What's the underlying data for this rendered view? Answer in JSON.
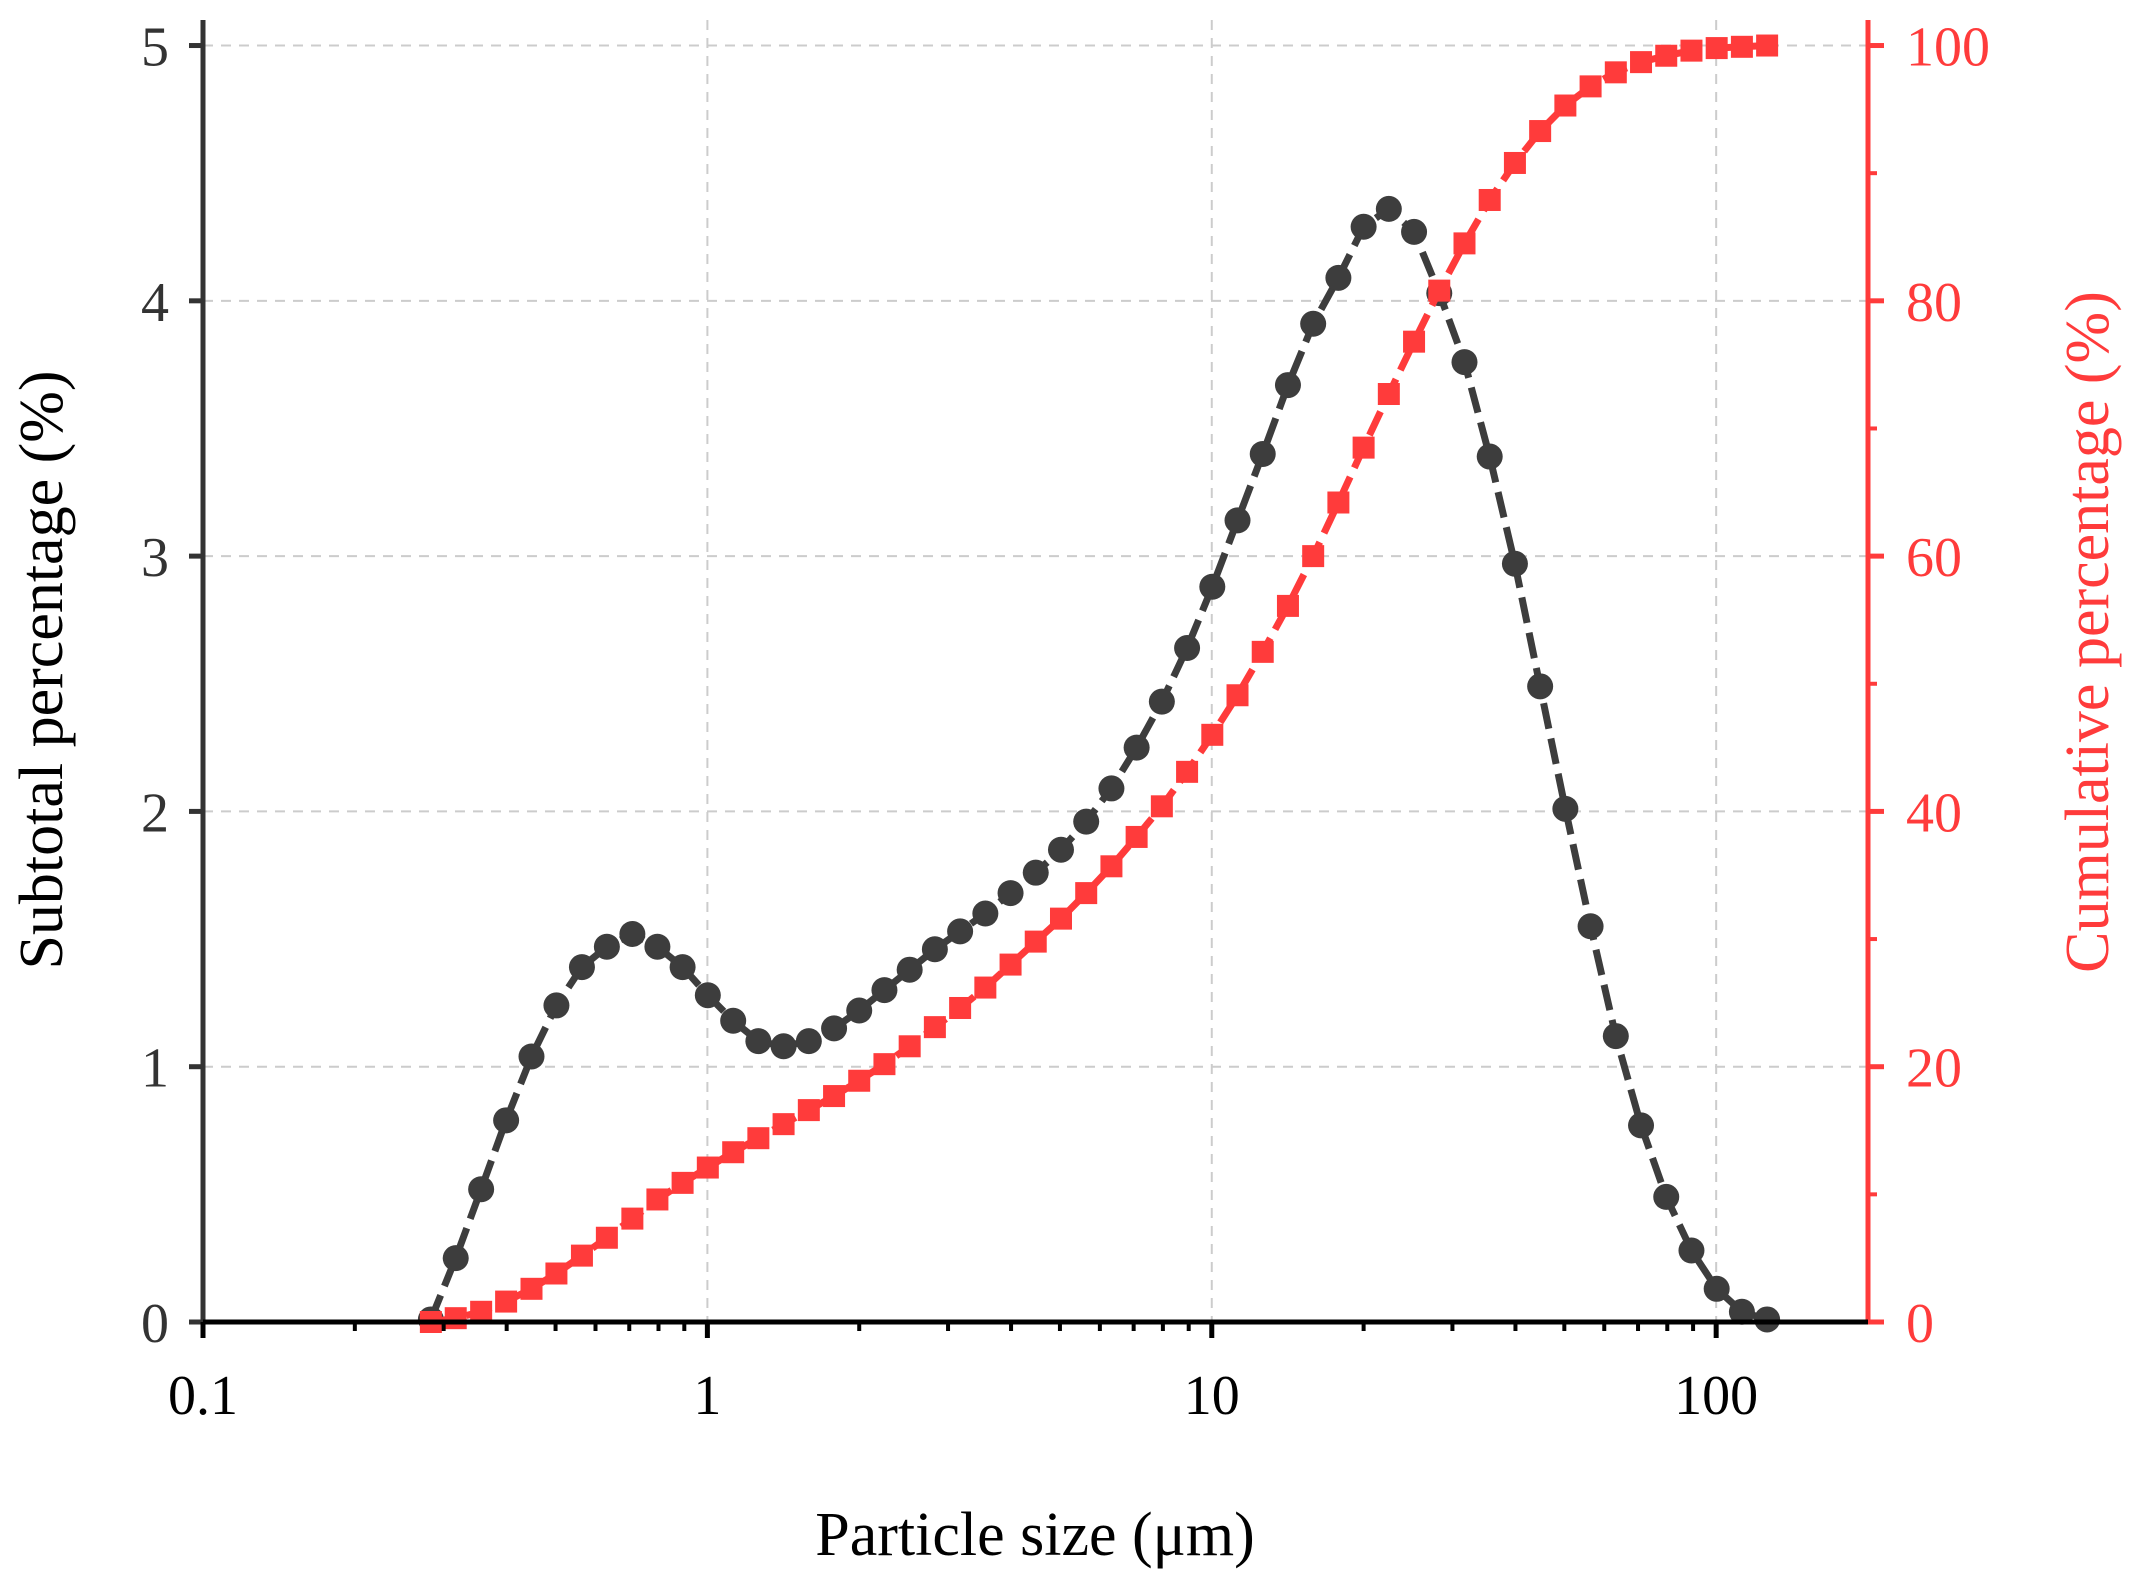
{
  "chart_data": {
    "type": "line",
    "title": "",
    "xlabel": "Particle size (μm)",
    "ylabel": "Subtotal percentage (%)",
    "y2label": "Cumulative percentage (%)",
    "xscale": "log",
    "xlim": [
      0.1,
      200
    ],
    "ylim": [
      0,
      5.1
    ],
    "y2lim": [
      0,
      102
    ],
    "xticks": [
      0.1,
      1,
      10,
      100
    ],
    "xtick_labels": [
      "0.1",
      "1",
      "10",
      "100"
    ],
    "yticks": [
      0,
      1,
      2,
      3,
      4,
      5
    ],
    "ytick_labels": [
      "0",
      "1",
      "2",
      "3",
      "4",
      "5"
    ],
    "y2ticks": [
      0,
      20,
      40,
      60,
      80,
      100
    ],
    "y2tick_labels": [
      "0",
      "20",
      "40",
      "60",
      "80",
      "100"
    ],
    "y2minor_ticks": [
      10,
      30,
      50,
      70,
      90
    ],
    "grid": true,
    "legend": "none",
    "colors": {
      "subtotal": "#3d3d3d",
      "cumulative": "#ff3b3b",
      "grid": "#cccccc",
      "axis": "#333333"
    },
    "series": [
      {
        "name": "Subtotal percentage",
        "axis": "left",
        "marker": "circle",
        "x": [
          0.283,
          0.317,
          0.356,
          0.399,
          0.448,
          0.502,
          0.564,
          0.632,
          0.71,
          0.796,
          0.893,
          1.002,
          1.125,
          1.262,
          1.416,
          1.589,
          1.783,
          2.0,
          2.244,
          2.518,
          2.825,
          3.17,
          3.557,
          3.991,
          4.477,
          5.024,
          5.637,
          6.325,
          7.096,
          7.962,
          8.934,
          10.024,
          11.247,
          12.619,
          14.159,
          15.887,
          17.825,
          20.0,
          22.44,
          25.179,
          28.251,
          31.698,
          35.566,
          39.905,
          44.774,
          50.238,
          56.368,
          63.246,
          70.963,
          79.621,
          89.337,
          100.238,
          112.468,
          126.191
        ],
        "values": [
          0.01,
          0.25,
          0.52,
          0.79,
          1.04,
          1.24,
          1.39,
          1.47,
          1.52,
          1.47,
          1.39,
          1.28,
          1.18,
          1.1,
          1.08,
          1.1,
          1.15,
          1.22,
          1.3,
          1.38,
          1.46,
          1.53,
          1.6,
          1.68,
          1.76,
          1.85,
          1.96,
          2.09,
          2.25,
          2.43,
          2.64,
          2.88,
          3.14,
          3.4,
          3.67,
          3.91,
          4.09,
          4.29,
          4.36,
          4.27,
          4.03,
          3.76,
          3.39,
          2.97,
          2.49,
          2.01,
          1.55,
          1.12,
          0.77,
          0.49,
          0.28,
          0.13,
          0.04,
          0.01
        ]
      },
      {
        "name": "Cumulative percentage",
        "axis": "right",
        "marker": "square",
        "x": [
          0.283,
          0.317,
          0.356,
          0.399,
          0.448,
          0.502,
          0.564,
          0.632,
          0.71,
          0.796,
          0.893,
          1.002,
          1.125,
          1.262,
          1.416,
          1.589,
          1.783,
          2.0,
          2.244,
          2.518,
          2.825,
          3.17,
          3.557,
          3.991,
          4.477,
          5.024,
          5.637,
          6.325,
          7.096,
          7.962,
          8.934,
          10.024,
          11.247,
          12.619,
          14.159,
          15.887,
          17.825,
          20.0,
          22.44,
          25.179,
          28.251,
          31.698,
          35.566,
          39.905,
          44.774,
          50.238,
          56.368,
          63.246,
          70.963,
          79.621,
          89.337,
          100.238,
          112.468,
          126.191
        ],
        "values": [
          0.0,
          0.3,
          0.8,
          1.6,
          2.6,
          3.8,
          5.2,
          6.6,
          8.1,
          9.6,
          10.9,
          12.1,
          13.3,
          14.4,
          15.5,
          16.6,
          17.7,
          18.9,
          20.2,
          21.6,
          23.1,
          24.6,
          26.2,
          28.0,
          29.8,
          31.6,
          33.6,
          35.7,
          38.0,
          40.4,
          43.1,
          46.0,
          49.1,
          52.5,
          56.1,
          60.0,
          64.2,
          68.5,
          72.7,
          76.8,
          80.8,
          84.5,
          87.9,
          90.8,
          93.3,
          95.3,
          96.8,
          97.9,
          98.7,
          99.2,
          99.6,
          99.8,
          99.9,
          100.0
        ]
      }
    ]
  }
}
